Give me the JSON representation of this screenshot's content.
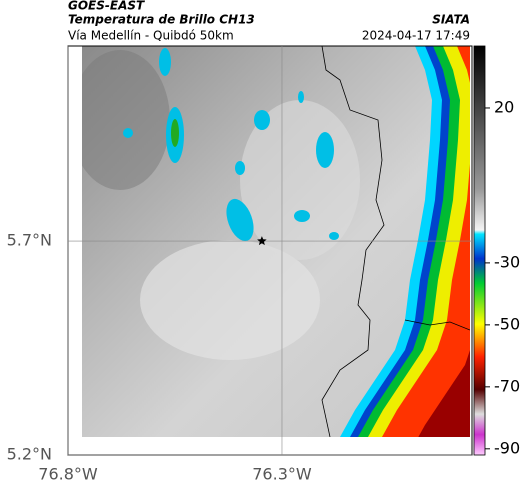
{
  "header": {
    "title": "GOES-EAST",
    "subtitle": "Temperatura de Brillo CH13",
    "route": "Vía Medellín - Quibdó 50km",
    "source": "SIATA",
    "timestamp": "2024-04-17 17:49"
  },
  "map": {
    "xlim": [
      -76.8,
      -75.856
    ],
    "ylim": [
      5.2,
      6.156
    ],
    "xticks": [
      {
        "value": -76.8,
        "label": "76.8°W"
      },
      {
        "value": -76.3,
        "label": "76.3°W"
      }
    ],
    "yticks": [
      {
        "value": 5.2,
        "label": "5.2°N"
      },
      {
        "value": 5.7,
        "label": "5.7°N"
      }
    ],
    "grid": true,
    "marker": {
      "lon": -76.347,
      "lat": 5.7
    }
  },
  "colorbar": {
    "clim": [
      -92,
      40
    ],
    "ticks": [
      20,
      -30,
      -50,
      -70,
      -90
    ]
  }
}
